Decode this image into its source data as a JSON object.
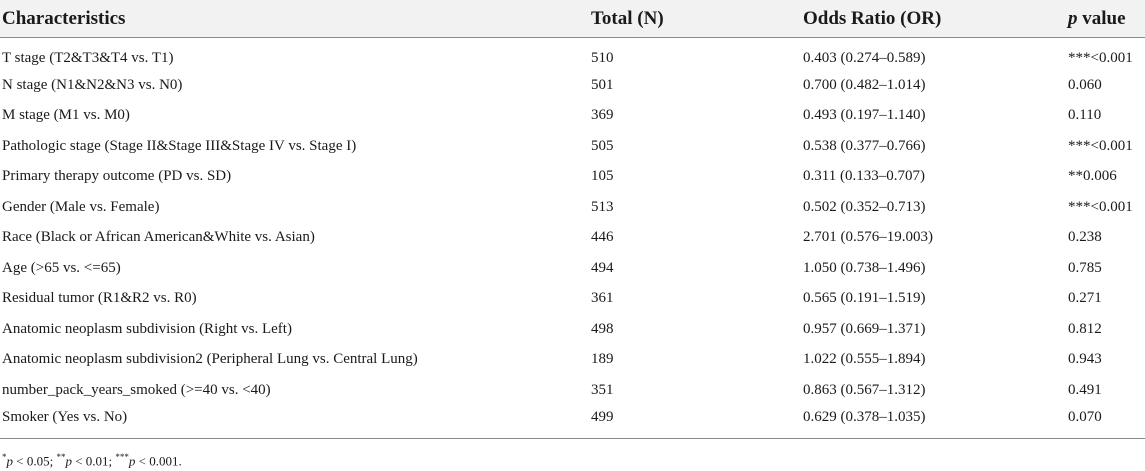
{
  "table": {
    "headers": {
      "characteristics": "Characteristics",
      "total": "Total (N)",
      "odds_ratio": "Odds Ratio (OR)",
      "p_letter": "p",
      "p_rest": " value"
    },
    "rows": [
      {
        "characteristic": "T stage (T2&T3&T4 vs. T1)",
        "total": "510",
        "or": "0.403 (0.274–0.589)",
        "p": "***<0.001"
      },
      {
        "characteristic": "N stage (N1&N2&N3 vs. N0)",
        "total": "501",
        "or": "0.700 (0.482–1.014)",
        "p": "0.060"
      },
      {
        "characteristic": "M stage (M1 vs. M0)",
        "total": "369",
        "or": "0.493 (0.197–1.140)",
        "p": "0.110"
      },
      {
        "characteristic": "Pathologic stage (Stage II&Stage III&Stage IV vs. Stage I)",
        "total": "505",
        "or": "0.538 (0.377–0.766)",
        "p": "***<0.001"
      },
      {
        "characteristic": "Primary therapy outcome (PD vs. SD)",
        "total": "105",
        "or": "0.311 (0.133–0.707)",
        "p": "**0.006"
      },
      {
        "characteristic": "Gender (Male vs. Female)",
        "total": "513",
        "or": "0.502 (0.352–0.713)",
        "p": "***<0.001"
      },
      {
        "characteristic": "Race (Black or African American&White vs. Asian)",
        "total": "446",
        "or": "2.701 (0.576–19.003)",
        "p": "0.238"
      },
      {
        "characteristic": "Age (>65 vs. <=65)",
        "total": "494",
        "or": "1.050 (0.738–1.496)",
        "p": "0.785"
      },
      {
        "characteristic": "Residual tumor (R1&R2 vs. R0)",
        "total": "361",
        "or": "0.565 (0.191–1.519)",
        "p": "0.271"
      },
      {
        "characteristic": "Anatomic neoplasm subdivision (Right vs. Left)",
        "total": "498",
        "or": "0.957 (0.669–1.371)",
        "p": "0.812"
      },
      {
        "characteristic": "Anatomic neoplasm subdivision2 (Peripheral Lung vs. Central Lung)",
        "total": "189",
        "or": "1.022 (0.555–1.894)",
        "p": "0.943"
      },
      {
        "characteristic": "number_pack_years_smoked (>=40 vs. <40)",
        "total": "351",
        "or": "0.863 (0.567–1.312)",
        "p": "0.491"
      },
      {
        "characteristic": "Smoker (Yes vs. No)",
        "total": "499",
        "or": "0.629 (0.378–1.035)",
        "p": "0.070"
      }
    ]
  },
  "footnote": {
    "s1": "*",
    "p1": "p",
    "t1": " < 0.05; ",
    "s2": "**",
    "p2": "p",
    "t2": " < 0.01; ",
    "s3": "***",
    "p3": "p",
    "t3": " < 0.001."
  }
}
